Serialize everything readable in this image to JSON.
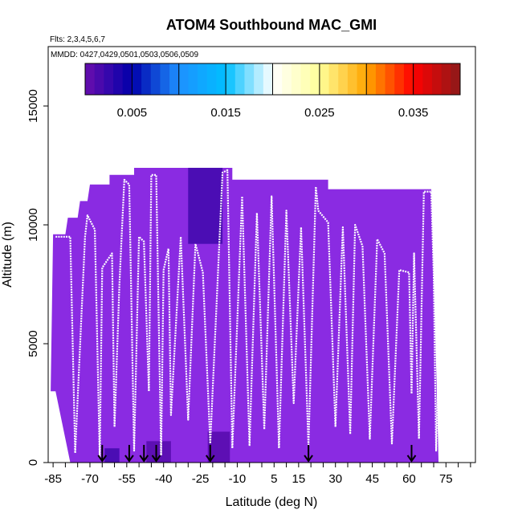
{
  "chart_data": {
    "type": "heatmap",
    "title": "ATOM4 Southbound MAC_GMI",
    "flights_label": "Flts: 2,3,4,5,6,7",
    "dates_label": "MMDD: 0427,0429,0501,0503,0506,0509",
    "xlabel": "Latitude (deg N)",
    "ylabel": "Altitude (m)",
    "xlim": [
      -87,
      87
    ],
    "ylim": [
      0,
      17500
    ],
    "x_ticks": [
      -85,
      -70,
      -55,
      -40,
      -25,
      -10,
      5,
      15,
      30,
      45,
      60,
      75
    ],
    "x_tick_labels": [
      "-85",
      "-70",
      "-55",
      "-40",
      "-25",
      "-10",
      "5",
      "15",
      "30",
      "45",
      "60",
      "75"
    ],
    "y_ticks": [
      0,
      5000,
      10000,
      15000
    ],
    "y_tick_labels": [
      "0",
      "5000",
      "10000",
      "15000"
    ],
    "colorbar": {
      "range": [
        0,
        0.04
      ],
      "tick_values": [
        0.005,
        0.015,
        0.025,
        0.035
      ],
      "tick_labels": [
        "0.005",
        "0.015",
        "0.025",
        "0.035"
      ],
      "colors": [
        "#6a0dad",
        "#0000aa",
        "#1e90ff",
        "#00bfff",
        "#ffffff",
        "#ffff99",
        "#ffa500",
        "#ff0000",
        "#8b1a1a"
      ]
    },
    "field_color": "#8a2be2",
    "field_outline": [
      [
        -86,
        3000
      ],
      [
        -85,
        9600
      ],
      [
        -80,
        9600
      ],
      [
        -79,
        10300
      ],
      [
        -75,
        10300
      ],
      [
        -74,
        11000
      ],
      [
        -71,
        11000
      ],
      [
        -70,
        11700
      ],
      [
        -62,
        11700
      ],
      [
        -62,
        12100
      ],
      [
        -52,
        12100
      ],
      [
        -52,
        12400
      ],
      [
        -12,
        12400
      ],
      [
        -12,
        11900
      ],
      [
        27,
        11900
      ],
      [
        27,
        11500
      ],
      [
        69,
        11500
      ],
      [
        71,
        4000
      ],
      [
        72,
        0
      ],
      [
        -78,
        0
      ],
      [
        -84,
        3000
      ]
    ],
    "dark_patches": [
      {
        "lat": [
          -30,
          -16
        ],
        "alt": [
          9200,
          12400
        ],
        "value": 0.002
      },
      {
        "lat": [
          -22,
          -13
        ],
        "alt": [
          0,
          1300
        ],
        "value": 0.001
      },
      {
        "lat": [
          -47,
          -37
        ],
        "alt": [
          0,
          900
        ],
        "value": 0.001
      },
      {
        "lat": [
          -64,
          -58
        ],
        "alt": [
          0,
          600
        ],
        "value": 0.002
      }
    ],
    "flight_track": [
      [
        -84,
        9500
      ],
      [
        -78,
        9500
      ],
      [
        -76,
        400
      ],
      [
        -72,
        9500
      ],
      [
        -71,
        10400
      ],
      [
        -68,
        9800
      ],
      [
        -66,
        200
      ],
      [
        -65,
        8200
      ],
      [
        -61,
        8800
      ],
      [
        -60,
        1500
      ],
      [
        -58,
        7500
      ],
      [
        -56,
        11900
      ],
      [
        -54,
        11700
      ],
      [
        -52,
        500
      ],
      [
        -50,
        9500
      ],
      [
        -48,
        9300
      ],
      [
        -46,
        3000
      ],
      [
        -45,
        12100
      ],
      [
        -43,
        12100
      ],
      [
        -41,
        300
      ],
      [
        -40,
        8100
      ],
      [
        -38,
        9000
      ],
      [
        -37,
        2000
      ],
      [
        -33,
        9500
      ],
      [
        -30,
        1800
      ],
      [
        -27,
        9200
      ],
      [
        -24,
        8000
      ],
      [
        -21,
        800
      ],
      [
        -16,
        12200
      ],
      [
        -14,
        12300
      ],
      [
        -12,
        600
      ],
      [
        -8,
        11200
      ],
      [
        -5,
        700
      ],
      [
        -2,
        10500
      ],
      [
        1,
        1400
      ],
      [
        4,
        11200
      ],
      [
        7,
        600
      ],
      [
        10,
        10600
      ],
      [
        13,
        2500
      ],
      [
        16,
        9900
      ],
      [
        19,
        700
      ],
      [
        22,
        11600
      ],
      [
        23,
        10600
      ],
      [
        27,
        10100
      ],
      [
        30,
        1500
      ],
      [
        33,
        9900
      ],
      [
        36,
        1200
      ],
      [
        38,
        10000
      ],
      [
        41,
        9100
      ],
      [
        44,
        1000
      ],
      [
        47,
        9400
      ],
      [
        50,
        8800
      ],
      [
        53,
        800
      ],
      [
        56,
        8100
      ],
      [
        60,
        8000
      ],
      [
        61,
        2900
      ],
      [
        62,
        8800
      ],
      [
        64,
        1000
      ],
      [
        66,
        11400
      ],
      [
        69,
        11400
      ],
      [
        70,
        8000
      ],
      [
        71,
        500
      ],
      [
        72,
        4500
      ]
    ],
    "arrows_lat": [
      -65,
      -54,
      -48,
      -43,
      -21,
      19,
      61
    ]
  }
}
